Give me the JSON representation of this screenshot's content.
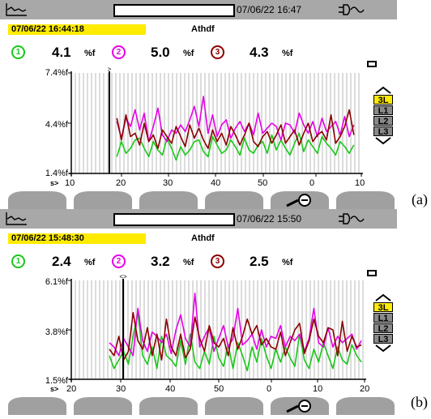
{
  "colors": {
    "phase1": "#19c819",
    "phase2": "#e600e6",
    "phase3": "#8b0000",
    "highlight": "#ffeb00",
    "bar": "#a8a8a8"
  },
  "panels": [
    {
      "status_datetime": "07/06/22 16:47",
      "record_timestamp": "07/06/22  16:44:18",
      "mode": "Athdf",
      "readings": [
        {
          "phase": "1",
          "value": "4.1",
          "unit": "%f"
        },
        {
          "phase": "2",
          "value": "5.0",
          "unit": "%f"
        },
        {
          "phase": "3",
          "value": "4.3",
          "unit": "%f"
        }
      ],
      "y_ticks": [
        "7.4%f",
        "4.4%f",
        "1.4%f"
      ],
      "x_prefix": "s>",
      "x_ticks": [
        "10",
        "20",
        "30",
        "40",
        "50",
        "0",
        "10"
      ],
      "cursor_symbol": ">",
      "phase_buttons": [
        "3L",
        "L1",
        "L2",
        "L3"
      ],
      "selected_phase": "3L",
      "tag": "(a)"
    },
    {
      "status_datetime": "07/06/22 15:50",
      "record_timestamp": "07/06/22 15:48:30",
      "mode": "Athdf",
      "readings": [
        {
          "phase": "1",
          "value": "2.4",
          "unit": "%f"
        },
        {
          "phase": "2",
          "value": "3.2",
          "unit": "%f"
        },
        {
          "phase": "3",
          "value": "2.5",
          "unit": "%f"
        }
      ],
      "y_ticks": [
        "6.1%f",
        "3.8%f",
        "1.5%f"
      ],
      "x_prefix": "s>",
      "x_ticks": [
        "20",
        "30",
        "40",
        "50",
        "0",
        "10",
        "20"
      ],
      "cursor_symbol": "<>",
      "phase_buttons": [
        "3L",
        "L1",
        "L2",
        "L3"
      ],
      "selected_phase": "3L",
      "tag": "(b)"
    }
  ],
  "chart_data": [
    {
      "type": "line",
      "title": "Athdf",
      "xlabel": "s",
      "ylabel": "%f",
      "x_tick_labels": [
        "10",
        "20",
        "30",
        "40",
        "50",
        "0",
        "10"
      ],
      "x": [
        18,
        19,
        20,
        21,
        22,
        23,
        24,
        25,
        26,
        27,
        28,
        29,
        30,
        31,
        32,
        33,
        34,
        35,
        36,
        37,
        38,
        39,
        40,
        41,
        42,
        43,
        44,
        45,
        46,
        47,
        48,
        49,
        50,
        51,
        52,
        53,
        54,
        55,
        56,
        57,
        58,
        59,
        60,
        61,
        62,
        63,
        64,
        65,
        66,
        67,
        68,
        69,
        70
      ],
      "ylim": [
        1.4,
        7.4
      ],
      "series": [
        {
          "name": "1",
          "values": [
            2.4,
            3.3,
            2.6,
            2.9,
            3.4,
            3.5,
            2.9,
            2.4,
            3.3,
            2.8,
            2.5,
            3.5,
            2.9,
            2.2,
            3.0,
            2.5,
            2.8,
            3.3,
            3.4,
            2.7,
            2.4,
            3.6,
            3.1,
            2.6,
            2.8,
            3.4,
            3.0,
            2.5,
            3.5,
            2.8,
            2.6,
            3.1,
            3.3,
            2.6,
            3.7,
            2.8,
            3.4,
            2.9,
            2.5,
            3.2,
            3.8,
            2.7,
            3.4,
            3.0,
            2.6,
            3.6,
            3.2,
            2.9,
            2.5,
            3.3,
            3.0,
            2.6,
            3.1
          ]
        },
        {
          "name": "2",
          "values": [
            4.5,
            3.5,
            4.7,
            4.2,
            5.2,
            4.0,
            5.0,
            3.3,
            4.2,
            5.3,
            3.7,
            3.3,
            4.0,
            3.8,
            4.3,
            3.9,
            4.6,
            5.4,
            4.2,
            6.0,
            3.8,
            4.9,
            3.6,
            4.3,
            4.6,
            3.5,
            4.1,
            4.5,
            3.9,
            4.4,
            3.7,
            5.0,
            3.8,
            4.1,
            4.4,
            4.2,
            3.4,
            4.4,
            4.3,
            3.8,
            5.0,
            4.3,
            3.8,
            4.5,
            3.6,
            4.7,
            3.9,
            4.2,
            4.5,
            3.7,
            4.8,
            3.6,
            4.3
          ]
        },
        {
          "name": "3",
          "values": [
            4.7,
            3.4,
            4.9,
            3.6,
            3.8,
            3.1,
            4.4,
            3.3,
            3.7,
            2.9,
            4.0,
            3.6,
            3.2,
            4.2,
            3.6,
            3.0,
            4.3,
            3.5,
            4.1,
            3.4,
            2.9,
            4.0,
            3.3,
            3.8,
            3.1,
            4.2,
            3.7,
            3.1,
            3.7,
            4.4,
            3.3,
            3.0,
            3.6,
            3.9,
            3.2,
            3.7,
            4.3,
            3.2,
            3.6,
            4.0,
            3.1,
            3.8,
            4.4,
            3.3,
            3.7,
            3.9,
            3.4,
            4.9,
            3.2,
            3.6,
            4.2,
            5.2,
            3.7
          ]
        }
      ]
    },
    {
      "type": "line",
      "title": "Athdf",
      "xlabel": "s",
      "ylabel": "%f",
      "x_tick_labels": [
        "20",
        "30",
        "40",
        "50",
        "0",
        "10",
        "20"
      ],
      "x": [
        26,
        27,
        28,
        29,
        30,
        31,
        32,
        33,
        34,
        35,
        36,
        37,
        38,
        39,
        40,
        41,
        42,
        43,
        44,
        45,
        46,
        47,
        48,
        49,
        50,
        51,
        52,
        53,
        54,
        55,
        56,
        57,
        58,
        59,
        60,
        61,
        62,
        63,
        64,
        65,
        66,
        67,
        68,
        69,
        70,
        71,
        72,
        73,
        74,
        75,
        76,
        77,
        78,
        79
      ],
      "ylim": [
        1.5,
        6.1
      ],
      "series": [
        {
          "name": "1",
          "values": [
            2.6,
            2.0,
            2.4,
            2.8,
            2.2,
            3.5,
            4.6,
            2.6,
            2.2,
            3.0,
            2.0,
            3.5,
            2.6,
            2.4,
            2.1,
            3.3,
            2.2,
            3.6,
            2.3,
            2.0,
            2.8,
            2.2,
            3.5,
            2.5,
            2.1,
            3.1,
            2.0,
            3.2,
            2.6,
            1.9,
            3.0,
            2.3,
            3.4,
            2.6,
            2.0,
            2.9,
            2.3,
            3.0,
            2.5,
            2.1,
            3.6,
            2.4,
            2.0,
            2.9,
            2.3,
            3.2,
            2.6,
            2.0,
            3.0,
            2.4,
            2.2,
            3.1,
            2.6,
            2.3
          ]
        },
        {
          "name": "2",
          "values": [
            3.2,
            3.0,
            2.6,
            3.4,
            3.0,
            2.6,
            4.8,
            3.3,
            2.8,
            3.7,
            3.5,
            3.2,
            3.6,
            2.7,
            3.8,
            4.5,
            3.4,
            3.0,
            5.5,
            3.0,
            3.5,
            3.9,
            2.8,
            3.4,
            4.0,
            3.0,
            3.4,
            4.8,
            3.1,
            3.3,
            3.6,
            2.9,
            3.8,
            3.0,
            3.5,
            3.4,
            4.0,
            3.0,
            3.5,
            3.3,
            3.6,
            2.8,
            3.4,
            4.8,
            3.2,
            3.0,
            3.9,
            3.0,
            3.5,
            3.2,
            3.4,
            3.6,
            2.9,
            3.3
          ]
        },
        {
          "name": "3",
          "values": [
            2.9,
            2.6,
            3.5,
            2.4,
            2.8,
            4.6,
            3.3,
            2.9,
            3.9,
            2.6,
            3.6,
            2.4,
            4.3,
            3.0,
            2.6,
            3.6,
            2.5,
            2.9,
            4.4,
            3.4,
            2.8,
            4.0,
            3.2,
            3.0,
            3.4,
            2.6,
            3.9,
            2.9,
            3.5,
            4.3,
            3.6,
            4.0,
            3.1,
            3.4,
            3.0,
            2.9,
            3.7,
            2.6,
            3.2,
            3.8,
            4.1,
            2.7,
            3.3,
            4.3,
            3.5,
            3.2,
            3.9,
            3.8,
            2.6,
            4.2,
            2.8,
            3.5,
            3.0,
            3.1
          ]
        }
      ]
    }
  ]
}
